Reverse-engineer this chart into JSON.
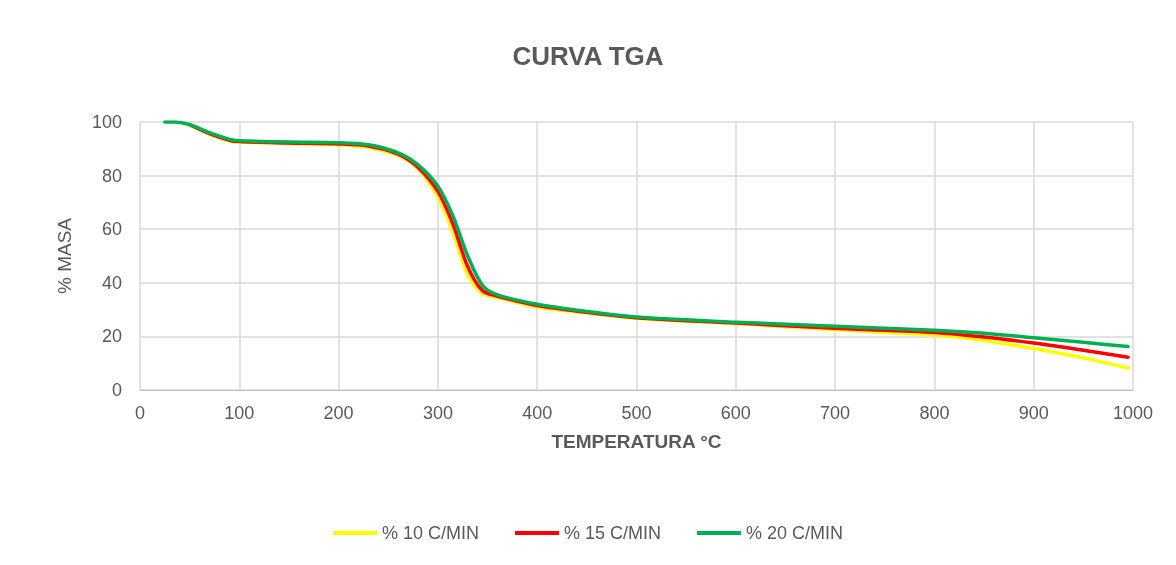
{
  "chart_data": {
    "type": "line",
    "title": "CURVA TGA",
    "xlabel": "TEMPERATURA °C",
    "ylabel": "% MASA",
    "xlim": [
      0,
      1000
    ],
    "xticks": [
      0,
      100,
      200,
      300,
      400,
      500,
      600,
      700,
      800,
      900,
      1000
    ],
    "ylim": [
      0,
      100
    ],
    "yticks": [
      0,
      20,
      40,
      60,
      80,
      100
    ],
    "grid": true,
    "legend": "bottom",
    "marker": "none",
    "line_style": "solid",
    "x": [
      25,
      35,
      50,
      70,
      90,
      100,
      150,
      200,
      230,
      260,
      280,
      300,
      315,
      330,
      345,
      360,
      400,
      450,
      500,
      600,
      700,
      800,
      850,
      900,
      950,
      995
    ],
    "series": [
      {
        "name": "% 10 C/MIN",
        "color": "#ffff00",
        "values": [
          null,
          null,
          99,
          95.5,
          93,
          92.5,
          92,
          91.5,
          90.5,
          87.5,
          82.5,
          72,
          59,
          43,
          36,
          34.5,
          31,
          28.8,
          26.8,
          24.8,
          22.5,
          20.5,
          18.5,
          15.5,
          12,
          8.2
        ]
      },
      {
        "name": "% 15 C/MIN",
        "color": "#ff0000",
        "values": [
          null,
          null,
          99,
          95.7,
          93.2,
          92.7,
          92.2,
          91.8,
          91,
          88,
          83,
          74,
          62,
          46,
          37,
          35,
          31.5,
          29,
          27,
          25,
          23,
          21.5,
          19.8,
          17.5,
          14.8,
          12.2
        ]
      },
      {
        "name": "% 20 C/MIN",
        "color": "#00b050",
        "values": [
          100,
          100,
          99,
          96,
          93.5,
          93,
          92.5,
          92.3,
          91.5,
          88.5,
          84,
          76,
          65,
          50,
          39,
          35.5,
          32,
          29.3,
          27.2,
          25.3,
          23.8,
          22.3,
          21.2,
          19.5,
          17.8,
          16.2
        ]
      }
    ]
  }
}
